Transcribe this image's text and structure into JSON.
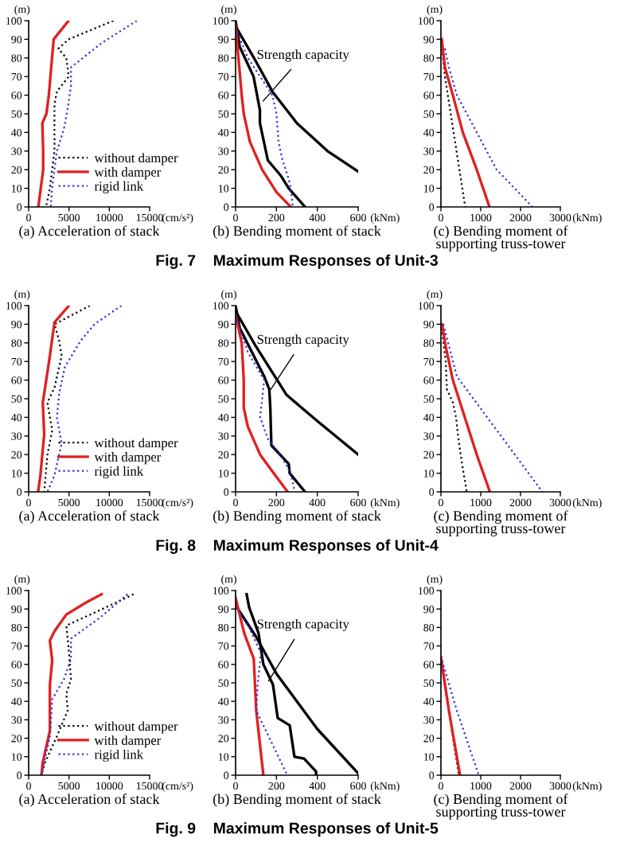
{
  "chart_data": [
    {
      "type": "line",
      "title": "(a) Acceleration of stack",
      "xlabel": "(cm/s²)",
      "ylabel": "(m)",
      "xlim": [
        0,
        15000
      ],
      "xticks": [
        0,
        5000,
        10000,
        15000
      ],
      "ylim": [
        0,
        100
      ],
      "yticks": [
        0,
        10,
        20,
        30,
        40,
        50,
        60,
        70,
        80,
        90,
        100
      ],
      "legend": "bottom right",
      "series": [
        {
          "name": "without damper",
          "color": "#000000",
          "line_style": "dotted",
          "x": [
            10500,
            4960,
            3680,
            4670,
            4960,
            3500,
            3200,
            3200,
            2630,
            2160
          ],
          "values": [
            100,
            90,
            85,
            80,
            70,
            62,
            55,
            30,
            10,
            0
          ]
        },
        {
          "name": "with damper",
          "color": "#e02020",
          "line_style": "solid",
          "x": [
            4950,
            3100,
            2900,
            2700,
            2500,
            2200,
            1700,
            1800,
            1800,
            1500,
            1200
          ],
          "values": [
            100,
            90,
            80,
            70,
            60,
            50,
            45,
            30,
            20,
            10,
            0
          ]
        },
        {
          "name": "rigid link",
          "color": "#3030e0",
          "line_style": "dotted",
          "x": [
            13400,
            9050,
            5250,
            5250,
            4850,
            4380,
            3500,
            2900,
            2740
          ],
          "values": [
            100,
            88,
            75,
            65,
            53,
            42,
            30,
            10,
            0
          ]
        }
      ]
    },
    {
      "type": "line",
      "title": "(b) Bending moment of stack",
      "xlabel": "(kNm)",
      "ylabel": "(m)",
      "xlim": [
        0,
        600
      ],
      "xticks": [
        0,
        200,
        400,
        600
      ],
      "ylim": [
        0,
        100
      ],
      "yticks": [
        0,
        10,
        20,
        30,
        40,
        50,
        60,
        70,
        80,
        90,
        100
      ],
      "annotations": [
        {
          "text": "Strength capacity",
          "x": 120,
          "y": 55
        },
        "Fig. 7    Maximum Responses of Unit-3"
      ],
      "series": [
        {
          "color": "#000000",
          "line_style": "solid",
          "x": [
            0,
            90,
            180,
            300,
            450,
            600
          ],
          "values": [
            97,
            80,
            62,
            45,
            30,
            19
          ]
        },
        {
          "color": "#000000",
          "line_style": "solid",
          "x": [
            0,
            20,
            88,
            119,
            119,
            158,
            220,
            260,
            340
          ],
          "values": [
            100,
            86,
            70,
            52,
            45,
            25,
            17,
            10,
            0
          ]
        },
        {
          "color": "#e02020",
          "line_style": "solid",
          "x": [
            0,
            10,
            30,
            40,
            70,
            130,
            200,
            270
          ],
          "values": [
            98,
            85,
            60,
            50,
            35,
            20,
            8,
            0
          ]
        },
        {
          "color": "#3030e0",
          "line_style": "dotted",
          "x": [
            0,
            60,
            120,
            180,
            200,
            210,
            230,
            260,
            270,
            280
          ],
          "values": [
            96,
            80,
            70,
            60,
            50,
            35,
            25,
            15,
            10,
            0
          ]
        }
      ]
    },
    {
      "type": "line",
      "title": "(c) Bending moment of\nsupporting truss-tower",
      "xlabel": "(kNm)",
      "ylabel": "(m)",
      "xlim": [
        0,
        3000
      ],
      "xticks": [
        0,
        1000,
        2000,
        3000
      ],
      "ylim": [
        0,
        100
      ],
      "yticks": [
        0,
        10,
        20,
        30,
        40,
        50,
        60,
        70,
        80,
        90,
        100
      ],
      "series": [
        {
          "color": "#000000",
          "line_style": "dotted",
          "x": [
            30,
            100,
            610
          ],
          "values": [
            85,
            70,
            0
          ]
        },
        {
          "color": "#e02020",
          "line_style": "solid",
          "x": [
            20,
            100,
            300,
            550,
            900,
            1220
          ],
          "values": [
            90,
            75,
            60,
            40,
            20,
            0
          ]
        },
        {
          "color": "#3030e0",
          "line_style": "dotted",
          "x": [
            100,
            200,
            400,
            1400,
            2300
          ],
          "values": [
            85,
            75,
            60,
            20,
            0
          ]
        }
      ]
    },
    {
      "type": "line",
      "title": "(a) Acceleration of stack",
      "xlabel": "(cm/s²)",
      "ylabel": "(m)",
      "xlim": [
        0,
        15000
      ],
      "xticks": [
        0,
        5000,
        10000,
        15000
      ],
      "ylim": [
        0,
        100
      ],
      "yticks": [
        0,
        10,
        20,
        30,
        40,
        50,
        60,
        70,
        80,
        90,
        100
      ],
      "legend": "bottom right",
      "series": [
        {
          "name": "without damper",
          "color": "#000000",
          "line_style": "dotted",
          "x": [
            7590,
            3210,
            3790,
            4090,
            3210,
            2330,
            2920,
            2330,
            1930
          ],
          "values": [
            100,
            90,
            81,
            73,
            56,
            48,
            33,
            20,
            0
          ]
        },
        {
          "name": "with damper",
          "color": "#e02020",
          "line_style": "solid",
          "x": [
            5000,
            3200,
            2630,
            2040,
            1750,
            1930,
            1460,
            1170
          ],
          "values": [
            100,
            91,
            73,
            56,
            48,
            31,
            9,
            0
          ]
        },
        {
          "name": "rigid link",
          "color": "#3030e0",
          "line_style": "dotted",
          "x": [
            11500,
            8170,
            6420,
            4490,
            3790,
            3500,
            4090,
            3210,
            2330
          ],
          "values": [
            100,
            90,
            81,
            67,
            53,
            40,
            26,
            9,
            0
          ]
        }
      ]
    },
    {
      "type": "line",
      "title": "(b) Bending moment of stack",
      "xlabel": "(kNm)",
      "ylabel": "(m)",
      "xlim": [
        0,
        600
      ],
      "xticks": [
        0,
        200,
        400,
        600
      ],
      "ylim": [
        0,
        100
      ],
      "yticks": [
        0,
        10,
        20,
        30,
        40,
        50,
        60,
        70,
        80,
        90,
        100
      ],
      "annotations": [
        {
          "text": "Strength capacity",
          "x": 160,
          "y": 53
        },
        "Fig. 8    Maximum Responses of Unit-4"
      ],
      "series": [
        {
          "color": "#000000",
          "line_style": "solid",
          "x": [
            0,
            100,
            250,
            400,
            600
          ],
          "values": [
            97,
            78,
            52,
            38,
            20
          ]
        },
        {
          "color": "#000000",
          "line_style": "solid",
          "x": [
            0,
            20,
            80,
            140,
            165,
            170,
            175,
            260,
            265,
            340
          ],
          "values": [
            100,
            88,
            75,
            62,
            55,
            45,
            25,
            15,
            10,
            0
          ]
        },
        {
          "color": "#e02020",
          "line_style": "solid",
          "x": [
            0,
            30,
            40,
            40,
            60,
            120,
            200,
            255
          ],
          "values": [
            95,
            80,
            60,
            45,
            35,
            20,
            8,
            0
          ]
        },
        {
          "color": "#3030e0",
          "line_style": "dotted",
          "x": [
            0,
            60,
            140,
            130,
            120,
            160,
            220,
            270,
            290
          ],
          "values": [
            95,
            75,
            60,
            50,
            40,
            28,
            20,
            10,
            0
          ]
        }
      ]
    },
    {
      "type": "line",
      "title": "(c) Bending moment of\nsupporting truss-tower",
      "xlabel": "(kNm)",
      "ylabel": "(m)",
      "xlim": [
        0,
        3000
      ],
      "xticks": [
        0,
        1000,
        2000,
        3000
      ],
      "ylim": [
        0,
        100
      ],
      "yticks": [
        0,
        10,
        20,
        30,
        40,
        50,
        60,
        70,
        80,
        90,
        100
      ],
      "series": [
        {
          "color": "#000000",
          "line_style": "dotted",
          "x": [
            20,
            120,
            150,
            300,
            380,
            430,
            530,
            650
          ],
          "values": [
            88,
            70,
            55,
            48,
            40,
            30,
            15,
            0
          ]
        },
        {
          "color": "#e02020",
          "line_style": "solid",
          "x": [
            30,
            120,
            300,
            600,
            900,
            1230
          ],
          "values": [
            90,
            78,
            60,
            40,
            20,
            0
          ]
        },
        {
          "color": "#3030e0",
          "line_style": "dotted",
          "x": [
            60,
            400,
            2550
          ],
          "values": [
            90,
            62,
            0
          ]
        }
      ]
    },
    {
      "type": "line",
      "title": "(a) Acceleration of stack",
      "xlabel": "(cm/s²)",
      "ylabel": "(m)",
      "xlim": [
        0,
        15000
      ],
      "xticks": [
        0,
        5000,
        10000,
        15000
      ],
      "ylim": [
        0,
        100
      ],
      "yticks": [
        0,
        10,
        20,
        30,
        40,
        50,
        60,
        70,
        80,
        90,
        100
      ],
      "legend": "bottom right",
      "series": [
        {
          "name": "without damper",
          "color": "#000000",
          "line_style": "dotted",
          "x": [
            13000,
            9630,
            4670,
            4960,
            5250,
            4670,
            4840,
            3500,
            2040,
            1580
          ],
          "values": [
            98,
            91,
            81,
            69,
            52,
            44,
            35,
            21,
            7,
            0
          ]
        },
        {
          "name": "with damper",
          "color": "#e02020",
          "line_style": "solid",
          "x": [
            9050,
            7300,
            4670,
            3210,
            2630,
            2920,
            2630,
            2630,
            1750,
            1580
          ],
          "values": [
            98,
            94,
            87,
            78,
            73,
            62,
            49,
            24,
            7,
            0
          ]
        },
        {
          "name": "rigid link",
          "color": "#3030e0",
          "line_style": "dotted",
          "x": [
            12260,
            8750,
            5250,
            5250,
            4380,
            2920,
            2630,
            1580
          ],
          "values": [
            98,
            85,
            74,
            63,
            52,
            41,
            21,
            0
          ]
        }
      ]
    },
    {
      "type": "line",
      "title": "(b) Bending moment of stack",
      "xlabel": "(kNm)",
      "ylabel": "(m)",
      "xlim": [
        0,
        600
      ],
      "xticks": [
        0,
        200,
        400,
        600
      ],
      "ylim": [
        0,
        100
      ],
      "yticks": [
        0,
        10,
        20,
        30,
        40,
        50,
        60,
        70,
        80,
        90,
        100
      ],
      "annotations": [
        {
          "text": "Strength capacity",
          "x": 150,
          "y": 49
        },
        "Fig. 9    Maximum Responses of Unit-5"
      ],
      "series": [
        {
          "color": "#000000",
          "line_style": "solid",
          "x": [
            0,
            100,
            200,
            400,
            600
          ],
          "values": [
            92,
            75,
            55,
            25,
            1
          ]
        },
        {
          "color": "#000000",
          "line_style": "solid",
          "x": [
            54,
            66,
            112,
            136,
            183,
            206,
            265,
            288,
            335,
            394,
            394
          ],
          "values": [
            98,
            91,
            77,
            60,
            49,
            31,
            27,
            10,
            9,
            2,
            0
          ]
        },
        {
          "color": "#e02020",
          "line_style": "solid",
          "x": [
            0,
            42,
            89,
            101,
            136
          ],
          "values": [
            96,
            77,
            63,
            35,
            0
          ]
        },
        {
          "color": "#3030e0",
          "line_style": "dotted",
          "x": [
            0,
            66,
            124,
            108,
            101,
            253
          ],
          "values": [
            91,
            80,
            66,
            49,
            35,
            0
          ]
        }
      ]
    },
    {
      "type": "line",
      "title": "(c) Bending moment of\nsupporting truss-tower",
      "xlabel": "(kNm)",
      "ylabel": "(m)",
      "xlim": [
        0,
        3000
      ],
      "xticks": [
        0,
        1000,
        2000,
        3000
      ],
      "ylim": [
        0,
        100
      ],
      "yticks": [
        0,
        10,
        20,
        30,
        40,
        50,
        60,
        70,
        80,
        90,
        100
      ],
      "series": [
        {
          "color": "#000000",
          "line_style": "dotted",
          "x": [
            0,
            450
          ],
          "values": [
            62,
            0
          ]
        },
        {
          "color": "#e02020",
          "line_style": "solid",
          "x": [
            0,
            200,
            480
          ],
          "values": [
            64,
            35,
            0
          ]
        },
        {
          "color": "#3030e0",
          "line_style": "dotted",
          "x": [
            30,
            400,
            950
          ],
          "values": [
            62,
            35,
            0
          ]
        }
      ]
    }
  ]
}
